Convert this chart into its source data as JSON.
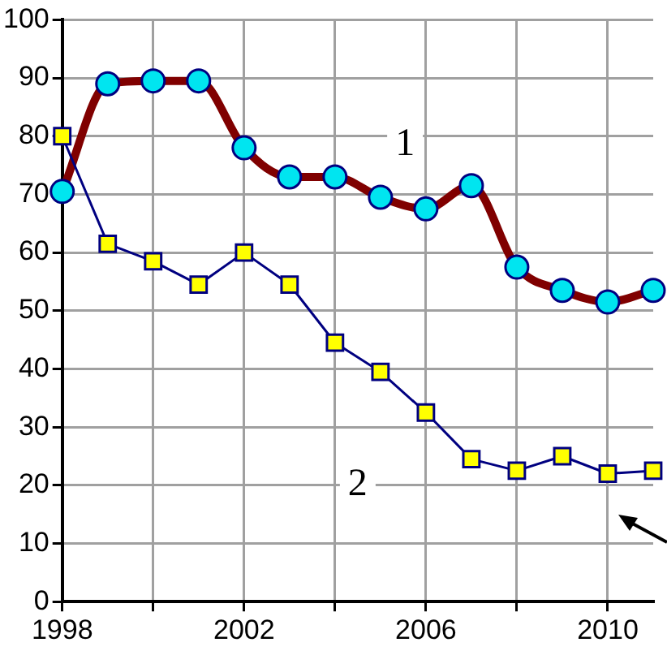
{
  "chart_data": {
    "type": "line",
    "x": [
      1998,
      1999,
      2000,
      2001,
      2002,
      2003,
      2004,
      2005,
      2006,
      2007,
      2008,
      2009,
      2010,
      2011
    ],
    "series": [
      {
        "name": "1",
        "color": "#800000",
        "marker": "circle",
        "values": [
          70.5,
          89,
          89.5,
          89.5,
          78,
          73,
          73,
          69.5,
          67.5,
          71.5,
          57.5,
          53.5,
          51.5,
          53.5
        ]
      },
      {
        "name": "2",
        "color": "#000080",
        "marker": "square",
        "values": [
          80,
          61.5,
          58.5,
          54.5,
          60,
          54.5,
          44.5,
          39.5,
          32.5,
          24.5,
          22.5,
          25,
          22,
          22.5
        ]
      }
    ],
    "xlim": [
      1998,
      2011
    ],
    "xticks": [
      1998,
      {
        "value": 2000,
        "label": null
      },
      2002,
      {
        "value": 2004,
        "label": null
      },
      2006,
      {
        "value": 2008,
        "label": null
      },
      2010
    ],
    "ylim": [
      0,
      100
    ],
    "yticks": [
      0,
      10,
      20,
      30,
      40,
      50,
      60,
      70,
      80,
      90,
      100
    ],
    "grid": true,
    "legend": false
  }
}
